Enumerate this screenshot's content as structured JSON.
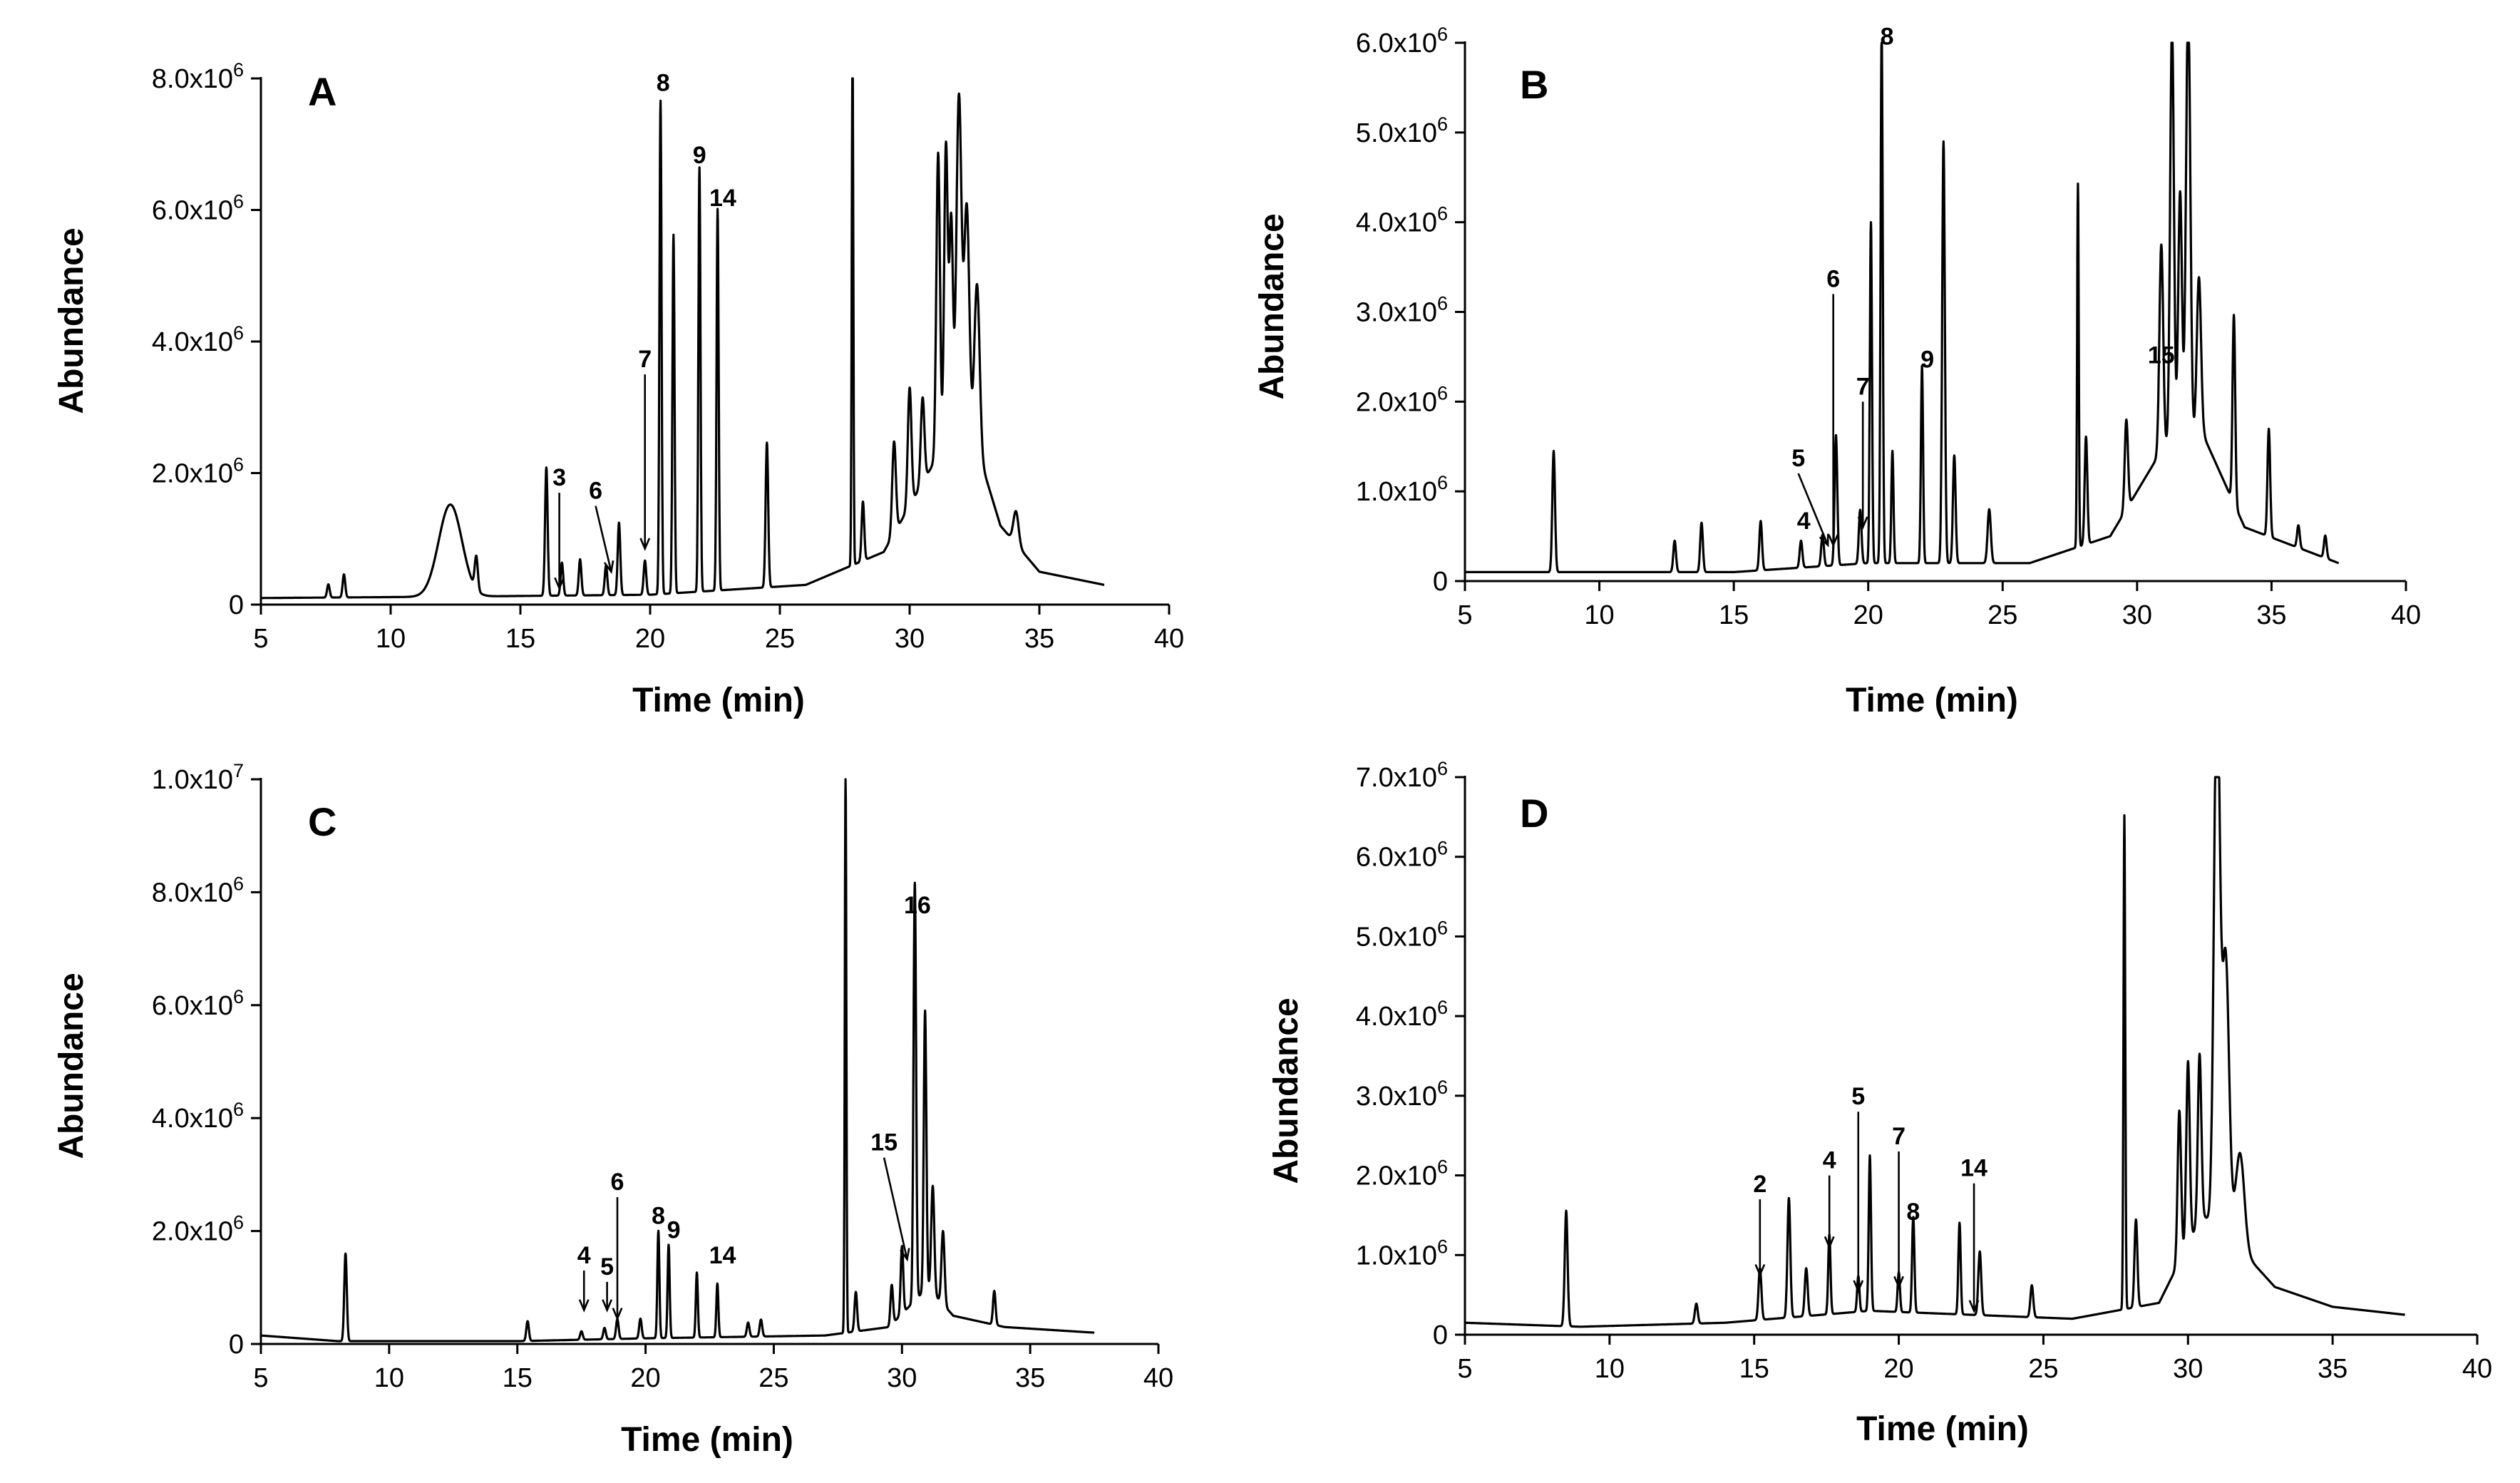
{
  "figure": {
    "x_axis_title": "Time (min)",
    "y_axis_title": "Abundance"
  },
  "chart_data": [
    {
      "type": "line",
      "panel": "A",
      "xlim": [
        5,
        40
      ],
      "xticks": [
        "5",
        "10",
        "15",
        "20",
        "25",
        "30",
        "35",
        "40"
      ],
      "ylim": [
        0,
        8000000
      ],
      "ytick_values": [
        0,
        2000000,
        4000000,
        6000000,
        8000000
      ],
      "yticks": [
        {
          "label": "0",
          "mant": "",
          "exp": ""
        },
        {
          "label": "",
          "mant": "2.0x10",
          "exp": "6"
        },
        {
          "label": "",
          "mant": "4.0x10",
          "exp": "6"
        },
        {
          "label": "",
          "mant": "6.0x10",
          "exp": "6"
        },
        {
          "label": "",
          "mant": "8.0x10",
          "exp": "6"
        }
      ],
      "baseline": [
        [
          5,
          100000
        ],
        [
          12,
          120000
        ],
        [
          20,
          150000
        ],
        [
          26,
          300000
        ],
        [
          29,
          800000
        ],
        [
          31,
          2200000
        ],
        [
          32.5,
          2500000
        ],
        [
          33.5,
          1200000
        ],
        [
          35,
          500000
        ],
        [
          37.5,
          300000
        ]
      ],
      "peaks": [
        [
          7.6,
          200000,
          0.05
        ],
        [
          8.2,
          350000,
          0.05
        ],
        [
          12.3,
          1400000,
          0.45
        ],
        [
          13.3,
          500000,
          0.06
        ],
        [
          16.0,
          1950000,
          0.05
        ],
        [
          16.6,
          500000,
          0.05
        ],
        [
          17.3,
          550000,
          0.05
        ],
        [
          18.3,
          450000,
          0.05
        ],
        [
          18.8,
          1100000,
          0.05
        ],
        [
          19.8,
          520000,
          0.05
        ],
        [
          20.4,
          7500000,
          0.04
        ],
        [
          20.9,
          5450000,
          0.04
        ],
        [
          21.9,
          6450000,
          0.04
        ],
        [
          22.6,
          5800000,
          0.04
        ],
        [
          24.5,
          2200000,
          0.05
        ],
        [
          27.8,
          7950000,
          0.03
        ],
        [
          28.2,
          900000,
          0.05
        ],
        [
          29.4,
          1400000,
          0.07
        ],
        [
          30.0,
          1800000,
          0.07
        ],
        [
          30.5,
          1300000,
          0.07
        ],
        [
          31.1,
          4650000,
          0.07
        ],
        [
          31.4,
          4700000,
          0.07
        ],
        [
          31.6,
          3500000,
          0.07
        ],
        [
          31.9,
          5350000,
          0.1
        ],
        [
          32.2,
          3600000,
          0.1
        ],
        [
          32.6,
          2500000,
          0.1
        ],
        [
          34.1,
          500000,
          0.1
        ]
      ],
      "labels": [
        {
          "text": "3",
          "x": 16.5,
          "y": 250000,
          "ty": 1700000
        },
        {
          "text": "6",
          "x": 18.5,
          "y": 500000,
          "ty": 1500000,
          "tx": 17.9
        },
        {
          "text": "7",
          "x": 19.8,
          "y": 850000,
          "ty": 3500000
        },
        {
          "text": "8",
          "x": 20.5,
          "y": 7700000,
          "noarrow": true
        },
        {
          "text": "9",
          "x": 21.9,
          "y": 6600000,
          "noarrow": true
        },
        {
          "text": "14",
          "x": 22.8,
          "y": 5950000,
          "noarrow": true
        }
      ]
    },
    {
      "type": "line",
      "panel": "B",
      "xlim": [
        5,
        40
      ],
      "xticks": [
        "5",
        "10",
        "15",
        "20",
        "25",
        "30",
        "35",
        "40"
      ],
      "ylim": [
        0,
        6000000
      ],
      "ytick_values": [
        0,
        1000000,
        2000000,
        3000000,
        4000000,
        5000000,
        6000000
      ],
      "yticks": [
        {
          "label": "0",
          "mant": "",
          "exp": ""
        },
        {
          "label": "",
          "mant": "1.0x10",
          "exp": "6"
        },
        {
          "label": "",
          "mant": "2.0x10",
          "exp": "6"
        },
        {
          "label": "",
          "mant": "3.0x10",
          "exp": "6"
        },
        {
          "label": "",
          "mant": "4.0x10",
          "exp": "6"
        },
        {
          "label": "",
          "mant": "5.0x10",
          "exp": "6"
        },
        {
          "label": "",
          "mant": "6.0x10",
          "exp": "6"
        }
      ],
      "baseline": [
        [
          5,
          100000
        ],
        [
          15,
          100000
        ],
        [
          20,
          200000
        ],
        [
          26,
          200000
        ],
        [
          29,
          500000
        ],
        [
          31,
          1500000
        ],
        [
          32.5,
          1600000
        ],
        [
          34,
          600000
        ],
        [
          37.5,
          200000
        ]
      ],
      "peaks": [
        [
          8.3,
          1350000,
          0.05
        ],
        [
          12.8,
          350000,
          0.05
        ],
        [
          13.8,
          550000,
          0.05
        ],
        [
          16.0,
          550000,
          0.05
        ],
        [
          17.5,
          300000,
          0.05
        ],
        [
          18.3,
          350000,
          0.05
        ],
        [
          18.8,
          1450000,
          0.05
        ],
        [
          19.7,
          600000,
          0.05
        ],
        [
          20.1,
          3800000,
          0.04
        ],
        [
          20.5,
          5950000,
          0.04
        ],
        [
          20.9,
          1250000,
          0.04
        ],
        [
          22.0,
          2200000,
          0.04
        ],
        [
          22.8,
          4700000,
          0.05
        ],
        [
          23.2,
          1200000,
          0.05
        ],
        [
          24.5,
          600000,
          0.06
        ],
        [
          27.8,
          4050000,
          0.03
        ],
        [
          28.1,
          1200000,
          0.05
        ],
        [
          29.6,
          1000000,
          0.06
        ],
        [
          30.9,
          2300000,
          0.07
        ],
        [
          31.3,
          4700000,
          0.07
        ],
        [
          31.6,
          2800000,
          0.07
        ],
        [
          31.9,
          4900000,
          0.08
        ],
        [
          32.3,
          1800000,
          0.08
        ],
        [
          33.6,
          2100000,
          0.05
        ],
        [
          34.9,
          1200000,
          0.05
        ],
        [
          36.0,
          250000,
          0.05
        ],
        [
          37.0,
          250000,
          0.05
        ]
      ],
      "labels": [
        {
          "text": "4",
          "x": 17.6,
          "y": 500000,
          "noarrow": true
        },
        {
          "text": "5",
          "x": 18.5,
          "y": 400000,
          "ty": 1200000,
          "tx": 17.4
        },
        {
          "text": "6",
          "x": 18.7,
          "y": 400000,
          "ty": 3200000
        },
        {
          "text": "7",
          "x": 19.8,
          "y": 600000,
          "ty": 2000000
        },
        {
          "text": "8",
          "x": 20.7,
          "y": 5900000,
          "noarrow": true
        },
        {
          "text": "9",
          "x": 22.2,
          "y": 2300000,
          "noarrow": true
        },
        {
          "text": "15",
          "x": 30.9,
          "y": 2350000,
          "noarrow": true
        }
      ]
    },
    {
      "type": "line",
      "panel": "C",
      "xlim": [
        5,
        40
      ],
      "xticks": [
        "5",
        "10",
        "15",
        "20",
        "25",
        "30",
        "35",
        "40"
      ],
      "ylim": [
        0,
        10000000
      ],
      "ytick_values": [
        0,
        2000000,
        4000000,
        6000000,
        8000000,
        10000000
      ],
      "yticks": [
        {
          "label": "0",
          "mant": "",
          "exp": ""
        },
        {
          "label": "",
          "mant": "2.0x10",
          "exp": "6"
        },
        {
          "label": "",
          "mant": "4.0x10",
          "exp": "6"
        },
        {
          "label": "",
          "mant": "6.0x10",
          "exp": "6"
        },
        {
          "label": "",
          "mant": "8.0x10",
          "exp": "6"
        },
        {
          "label": "",
          "mant": "1.0x10",
          "exp": "7"
        }
      ],
      "baseline": [
        [
          5,
          150000
        ],
        [
          8,
          50000
        ],
        [
          15,
          50000
        ],
        [
          20,
          100000
        ],
        [
          27,
          150000
        ],
        [
          29.5,
          300000
        ],
        [
          31,
          1000000
        ],
        [
          32,
          500000
        ],
        [
          34,
          300000
        ],
        [
          37.5,
          200000
        ]
      ],
      "peaks": [
        [
          8.3,
          1550000,
          0.05
        ],
        [
          15.4,
          350000,
          0.05
        ],
        [
          17.5,
          150000,
          0.05
        ],
        [
          18.4,
          200000,
          0.05
        ],
        [
          18.9,
          350000,
          0.05
        ],
        [
          19.8,
          350000,
          0.05
        ],
        [
          20.5,
          1900000,
          0.04
        ],
        [
          20.9,
          1650000,
          0.04
        ],
        [
          22.0,
          1150000,
          0.04
        ],
        [
          22.8,
          950000,
          0.04
        ],
        [
          24.0,
          250000,
          0.05
        ],
        [
          24.5,
          300000,
          0.05
        ],
        [
          27.8,
          9950000,
          0.03
        ],
        [
          28.2,
          700000,
          0.05
        ],
        [
          29.6,
          700000,
          0.05
        ],
        [
          30.0,
          1200000,
          0.05
        ],
        [
          30.5,
          7400000,
          0.05
        ],
        [
          30.9,
          4950000,
          0.05
        ],
        [
          31.2,
          1900000,
          0.06
        ],
        [
          31.6,
          1300000,
          0.06
        ],
        [
          33.6,
          600000,
          0.05
        ]
      ],
      "labels": [
        {
          "text": "4",
          "x": 17.6,
          "y": 600000,
          "ty": 1300000
        },
        {
          "text": "5",
          "x": 18.5,
          "y": 600000,
          "ty": 1100000
        },
        {
          "text": "6",
          "x": 18.9,
          "y": 450000,
          "ty": 2600000
        },
        {
          "text": "8",
          "x": 20.5,
          "y": 2000000,
          "noarrow": true
        },
        {
          "text": "9",
          "x": 21.1,
          "y": 1750000,
          "noarrow": true
        },
        {
          "text": "14",
          "x": 23.0,
          "y": 1300000,
          "noarrow": true
        },
        {
          "text": "15",
          "x": 30.2,
          "y": 1500000,
          "ty": 3300000,
          "tx": 29.3
        },
        {
          "text": "16",
          "x": 30.6,
          "y": 7500000,
          "noarrow": true
        }
      ]
    },
    {
      "type": "line",
      "panel": "D",
      "xlim": [
        5,
        40
      ],
      "xticks": [
        "5",
        "10",
        "15",
        "20",
        "25",
        "30",
        "35",
        "40"
      ],
      "ylim": [
        0,
        7000000
      ],
      "ytick_values": [
        0,
        1000000,
        2000000,
        3000000,
        4000000,
        5000000,
        6000000,
        7000000
      ],
      "yticks": [
        {
          "label": "0",
          "mant": "",
          "exp": ""
        },
        {
          "label": "",
          "mant": "1.0x10",
          "exp": "6"
        },
        {
          "label": "",
          "mant": "2.0x10",
          "exp": "6"
        },
        {
          "label": "",
          "mant": "3.0x10",
          "exp": "6"
        },
        {
          "label": "",
          "mant": "4.0x10",
          "exp": "6"
        },
        {
          "label": "",
          "mant": "5.0x10",
          "exp": "6"
        },
        {
          "label": "",
          "mant": "6.0x10",
          "exp": "6"
        },
        {
          "label": "",
          "mant": "7.0x10",
          "exp": "6"
        }
      ],
      "baseline": [
        [
          5,
          150000
        ],
        [
          9,
          100000
        ],
        [
          14,
          150000
        ],
        [
          19,
          300000
        ],
        [
          26,
          200000
        ],
        [
          29,
          400000
        ],
        [
          30.5,
          1500000
        ],
        [
          31.5,
          1200000
        ],
        [
          33,
          600000
        ],
        [
          35,
          350000
        ],
        [
          37.5,
          250000
        ]
      ],
      "peaks": [
        [
          8.5,
          1450000,
          0.05
        ],
        [
          13.0,
          250000,
          0.05
        ],
        [
          15.2,
          650000,
          0.05
        ],
        [
          16.2,
          1500000,
          0.05
        ],
        [
          16.8,
          600000,
          0.05
        ],
        [
          17.6,
          1000000,
          0.04
        ],
        [
          18.6,
          450000,
          0.04
        ],
        [
          19.0,
          1950000,
          0.04
        ],
        [
          20.0,
          500000,
          0.04
        ],
        [
          20.5,
          1200000,
          0.04
        ],
        [
          22.1,
          1150000,
          0.04
        ],
        [
          22.8,
          800000,
          0.05
        ],
        [
          24.6,
          400000,
          0.05
        ],
        [
          27.8,
          6200000,
          0.03
        ],
        [
          28.2,
          1100000,
          0.05
        ],
        [
          29.7,
          1900000,
          0.06
        ],
        [
          30.0,
          2300000,
          0.06
        ],
        [
          30.4,
          2100000,
          0.06
        ],
        [
          31.0,
          6900000,
          0.1
        ],
        [
          31.3,
          3500000,
          0.12
        ],
        [
          31.8,
          1200000,
          0.15
        ]
      ],
      "labels": [
        {
          "text": "2",
          "x": 15.2,
          "y": 750000,
          "ty": 1700000
        },
        {
          "text": "4",
          "x": 17.6,
          "y": 1100000,
          "ty": 2000000
        },
        {
          "text": "5",
          "x": 18.6,
          "y": 550000,
          "ty": 2800000
        },
        {
          "text": "7",
          "x": 20.0,
          "y": 600000,
          "ty": 2300000
        },
        {
          "text": "8",
          "x": 20.5,
          "y": 1350000,
          "noarrow": true
        },
        {
          "text": "14",
          "x": 22.6,
          "y": 300000,
          "ty": 1900000
        }
      ]
    }
  ]
}
